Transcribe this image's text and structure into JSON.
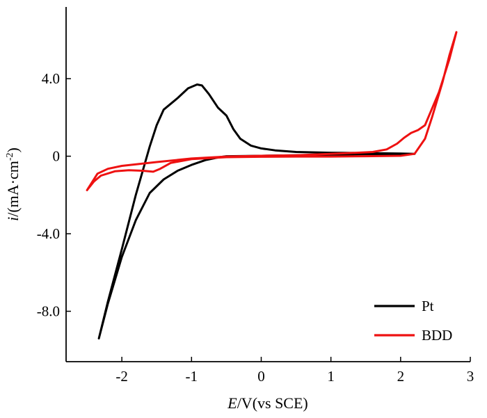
{
  "chart_data": {
    "type": "line",
    "title": "",
    "xlabel": {
      "italic": "E",
      "rest": "/V(vs SCE)"
    },
    "ylabel": {
      "italic": "i",
      "rest": "/(mA·cm",
      "sup": "-2",
      "close": ")"
    },
    "xlim": [
      -2.8,
      3.0
    ],
    "ylim": [
      -10.6,
      7.7
    ],
    "x_ticks": [
      {
        "value": -2,
        "label": "-2"
      },
      {
        "value": -1,
        "label": "-1"
      },
      {
        "value": 0,
        "label": "0"
      },
      {
        "value": 1,
        "label": "1"
      },
      {
        "value": 2,
        "label": "2"
      },
      {
        "value": 3,
        "label": "3"
      }
    ],
    "y_ticks": [
      {
        "value": 4,
        "label": "4.0"
      },
      {
        "value": 0,
        "label": "0"
      },
      {
        "value": -4,
        "label": "-4.0"
      },
      {
        "value": -8,
        "label": "-8.0"
      }
    ],
    "grid": false,
    "legend_position": "bottom-right",
    "series": [
      {
        "name": "Pt",
        "color": "#000000",
        "points": [
          [
            -2.33,
            -9.4
          ],
          [
            -2.2,
            -7.6
          ],
          [
            -2.0,
            -5.2
          ],
          [
            -1.8,
            -3.3
          ],
          [
            -1.6,
            -1.9
          ],
          [
            -1.4,
            -1.2
          ],
          [
            -1.2,
            -0.75
          ],
          [
            -1.0,
            -0.45
          ],
          [
            -0.8,
            -0.2
          ],
          [
            -0.6,
            -0.05
          ],
          [
            -0.5,
            0.0
          ],
          [
            0.0,
            0.02
          ],
          [
            0.5,
            0.05
          ],
          [
            1.0,
            0.08
          ],
          [
            1.5,
            0.1
          ],
          [
            2.0,
            0.1
          ],
          [
            2.2,
            0.12
          ],
          [
            2.0,
            0.14
          ],
          [
            1.5,
            0.16
          ],
          [
            1.0,
            0.18
          ],
          [
            0.5,
            0.22
          ],
          [
            0.2,
            0.3
          ],
          [
            0.0,
            0.4
          ],
          [
            -0.15,
            0.55
          ],
          [
            -0.3,
            0.9
          ],
          [
            -0.4,
            1.4
          ],
          [
            -0.5,
            2.1
          ],
          [
            -0.62,
            2.5
          ],
          [
            -0.75,
            3.2
          ],
          [
            -0.85,
            3.65
          ],
          [
            -0.92,
            3.7
          ],
          [
            -1.05,
            3.5
          ],
          [
            -1.2,
            3.0
          ],
          [
            -1.3,
            2.7
          ],
          [
            -1.4,
            2.4
          ],
          [
            -1.5,
            1.6
          ],
          [
            -1.6,
            0.5
          ],
          [
            -1.8,
            -2.0
          ],
          [
            -2.0,
            -4.8
          ],
          [
            -2.2,
            -7.5
          ],
          [
            -2.33,
            -9.4
          ]
        ]
      },
      {
        "name": "BDD",
        "color": "#ee1111",
        "points": [
          [
            -2.5,
            -1.75
          ],
          [
            -2.4,
            -1.3
          ],
          [
            -2.3,
            -1.0
          ],
          [
            -2.1,
            -0.78
          ],
          [
            -1.9,
            -0.72
          ],
          [
            -1.7,
            -0.75
          ],
          [
            -1.55,
            -0.8
          ],
          [
            -1.45,
            -0.65
          ],
          [
            -1.3,
            -0.35
          ],
          [
            -1.0,
            -0.15
          ],
          [
            -0.5,
            -0.05
          ],
          [
            0.0,
            -0.03
          ],
          [
            0.5,
            -0.02
          ],
          [
            1.0,
            -0.02
          ],
          [
            1.5,
            0.0
          ],
          [
            2.0,
            0.02
          ],
          [
            2.2,
            0.12
          ],
          [
            2.35,
            0.9
          ],
          [
            2.45,
            2.0
          ],
          [
            2.6,
            3.8
          ],
          [
            2.7,
            5.2
          ],
          [
            2.8,
            6.4
          ],
          [
            2.7,
            5.0
          ],
          [
            2.55,
            3.3
          ],
          [
            2.35,
            1.6
          ],
          [
            2.25,
            1.35
          ],
          [
            2.15,
            1.2
          ],
          [
            2.05,
            0.95
          ],
          [
            1.95,
            0.65
          ],
          [
            1.8,
            0.35
          ],
          [
            1.6,
            0.22
          ],
          [
            1.2,
            0.15
          ],
          [
            0.5,
            0.05
          ],
          [
            0.0,
            0.02
          ],
          [
            -0.5,
            -0.02
          ],
          [
            -1.0,
            -0.12
          ],
          [
            -1.5,
            -0.3
          ],
          [
            -2.0,
            -0.5
          ],
          [
            -2.2,
            -0.65
          ],
          [
            -2.35,
            -0.9
          ],
          [
            -2.5,
            -1.75
          ]
        ]
      }
    ]
  }
}
